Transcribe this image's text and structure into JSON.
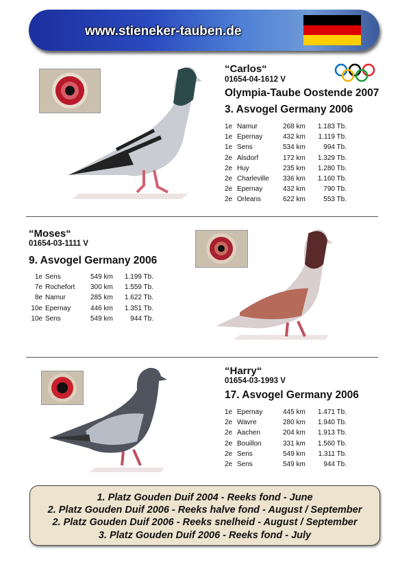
{
  "banner": {
    "url": "www.stieneker-tauben.de",
    "flag_colors": [
      "#000000",
      "#dd0000",
      "#ffce00"
    ]
  },
  "pigeons": [
    {
      "name": "“Carlos“",
      "ring": "01654-04-1612 V",
      "titles": [
        "Olympia-Taube Oostende 2007",
        "3. Asvogel Germany 2006"
      ],
      "results": [
        [
          "1e",
          "Namur",
          "268 km",
          "1.183 Tb."
        ],
        [
          "1e",
          "Epernay",
          "432 km",
          "1.119 Tb."
        ],
        [
          "1e",
          "Sens",
          "534 km",
          "994 Tb."
        ],
        [
          "2e",
          "Alsdorf",
          "172 km",
          "1.329 Tb."
        ],
        [
          "2e",
          "Huy",
          "235 km",
          "1.280 Tb."
        ],
        [
          "2e",
          "Charleville",
          "336 km",
          "1.160 Tb."
        ],
        [
          "2e",
          "Epernay",
          "432 km",
          "790 Tb."
        ],
        [
          "2e",
          "Orleans",
          "622 km",
          "553 Tb."
        ]
      ]
    },
    {
      "name": "“Moses“",
      "ring": "01654-03-1111 V",
      "titles": [
        "9. Asvogel Germany 2006"
      ],
      "results": [
        [
          "1e",
          "Sens",
          "549 km",
          "1.199 Tb."
        ],
        [
          "7e",
          "Rochefort",
          "300 km",
          "1.559 Tb."
        ],
        [
          "8e",
          "Namur",
          "285 km",
          "1.622 Tb."
        ],
        [
          "10e",
          "Epernay",
          "446 km",
          "1.351 Tb."
        ],
        [
          "10e",
          "Sens",
          "549 km",
          "944 Tb."
        ]
      ]
    },
    {
      "name": "“Harry“",
      "ring": "01654-03-1993 V",
      "titles": [
        "17. Asvogel Germany 2006"
      ],
      "results": [
        [
          "1e",
          "Epernay",
          "445 km",
          "1.471 Tb."
        ],
        [
          "2e",
          "Wavre",
          "280 km",
          "1.940 Tb."
        ],
        [
          "2e",
          "Aachen",
          "204 km",
          "1.913 Tb."
        ],
        [
          "2e",
          "Bouillon",
          "331 km",
          "1.560 Tb."
        ],
        [
          "2e",
          "Sens",
          "549 km",
          "1.311 Tb."
        ],
        [
          "2e",
          "Sens",
          "549 km",
          "944 Tb."
        ]
      ]
    }
  ],
  "awards": [
    "1. Platz Gouden Duif 2004 - Reeks fond - June",
    "2. Platz Gouden Duif 2006 - Reeks halve fond - August / September",
    "2. Platz Gouden Duif 2006 - Reeks snelheid - August / September",
    "3. Platz Gouden Duif 2006 - Reeks fond - July"
  ]
}
